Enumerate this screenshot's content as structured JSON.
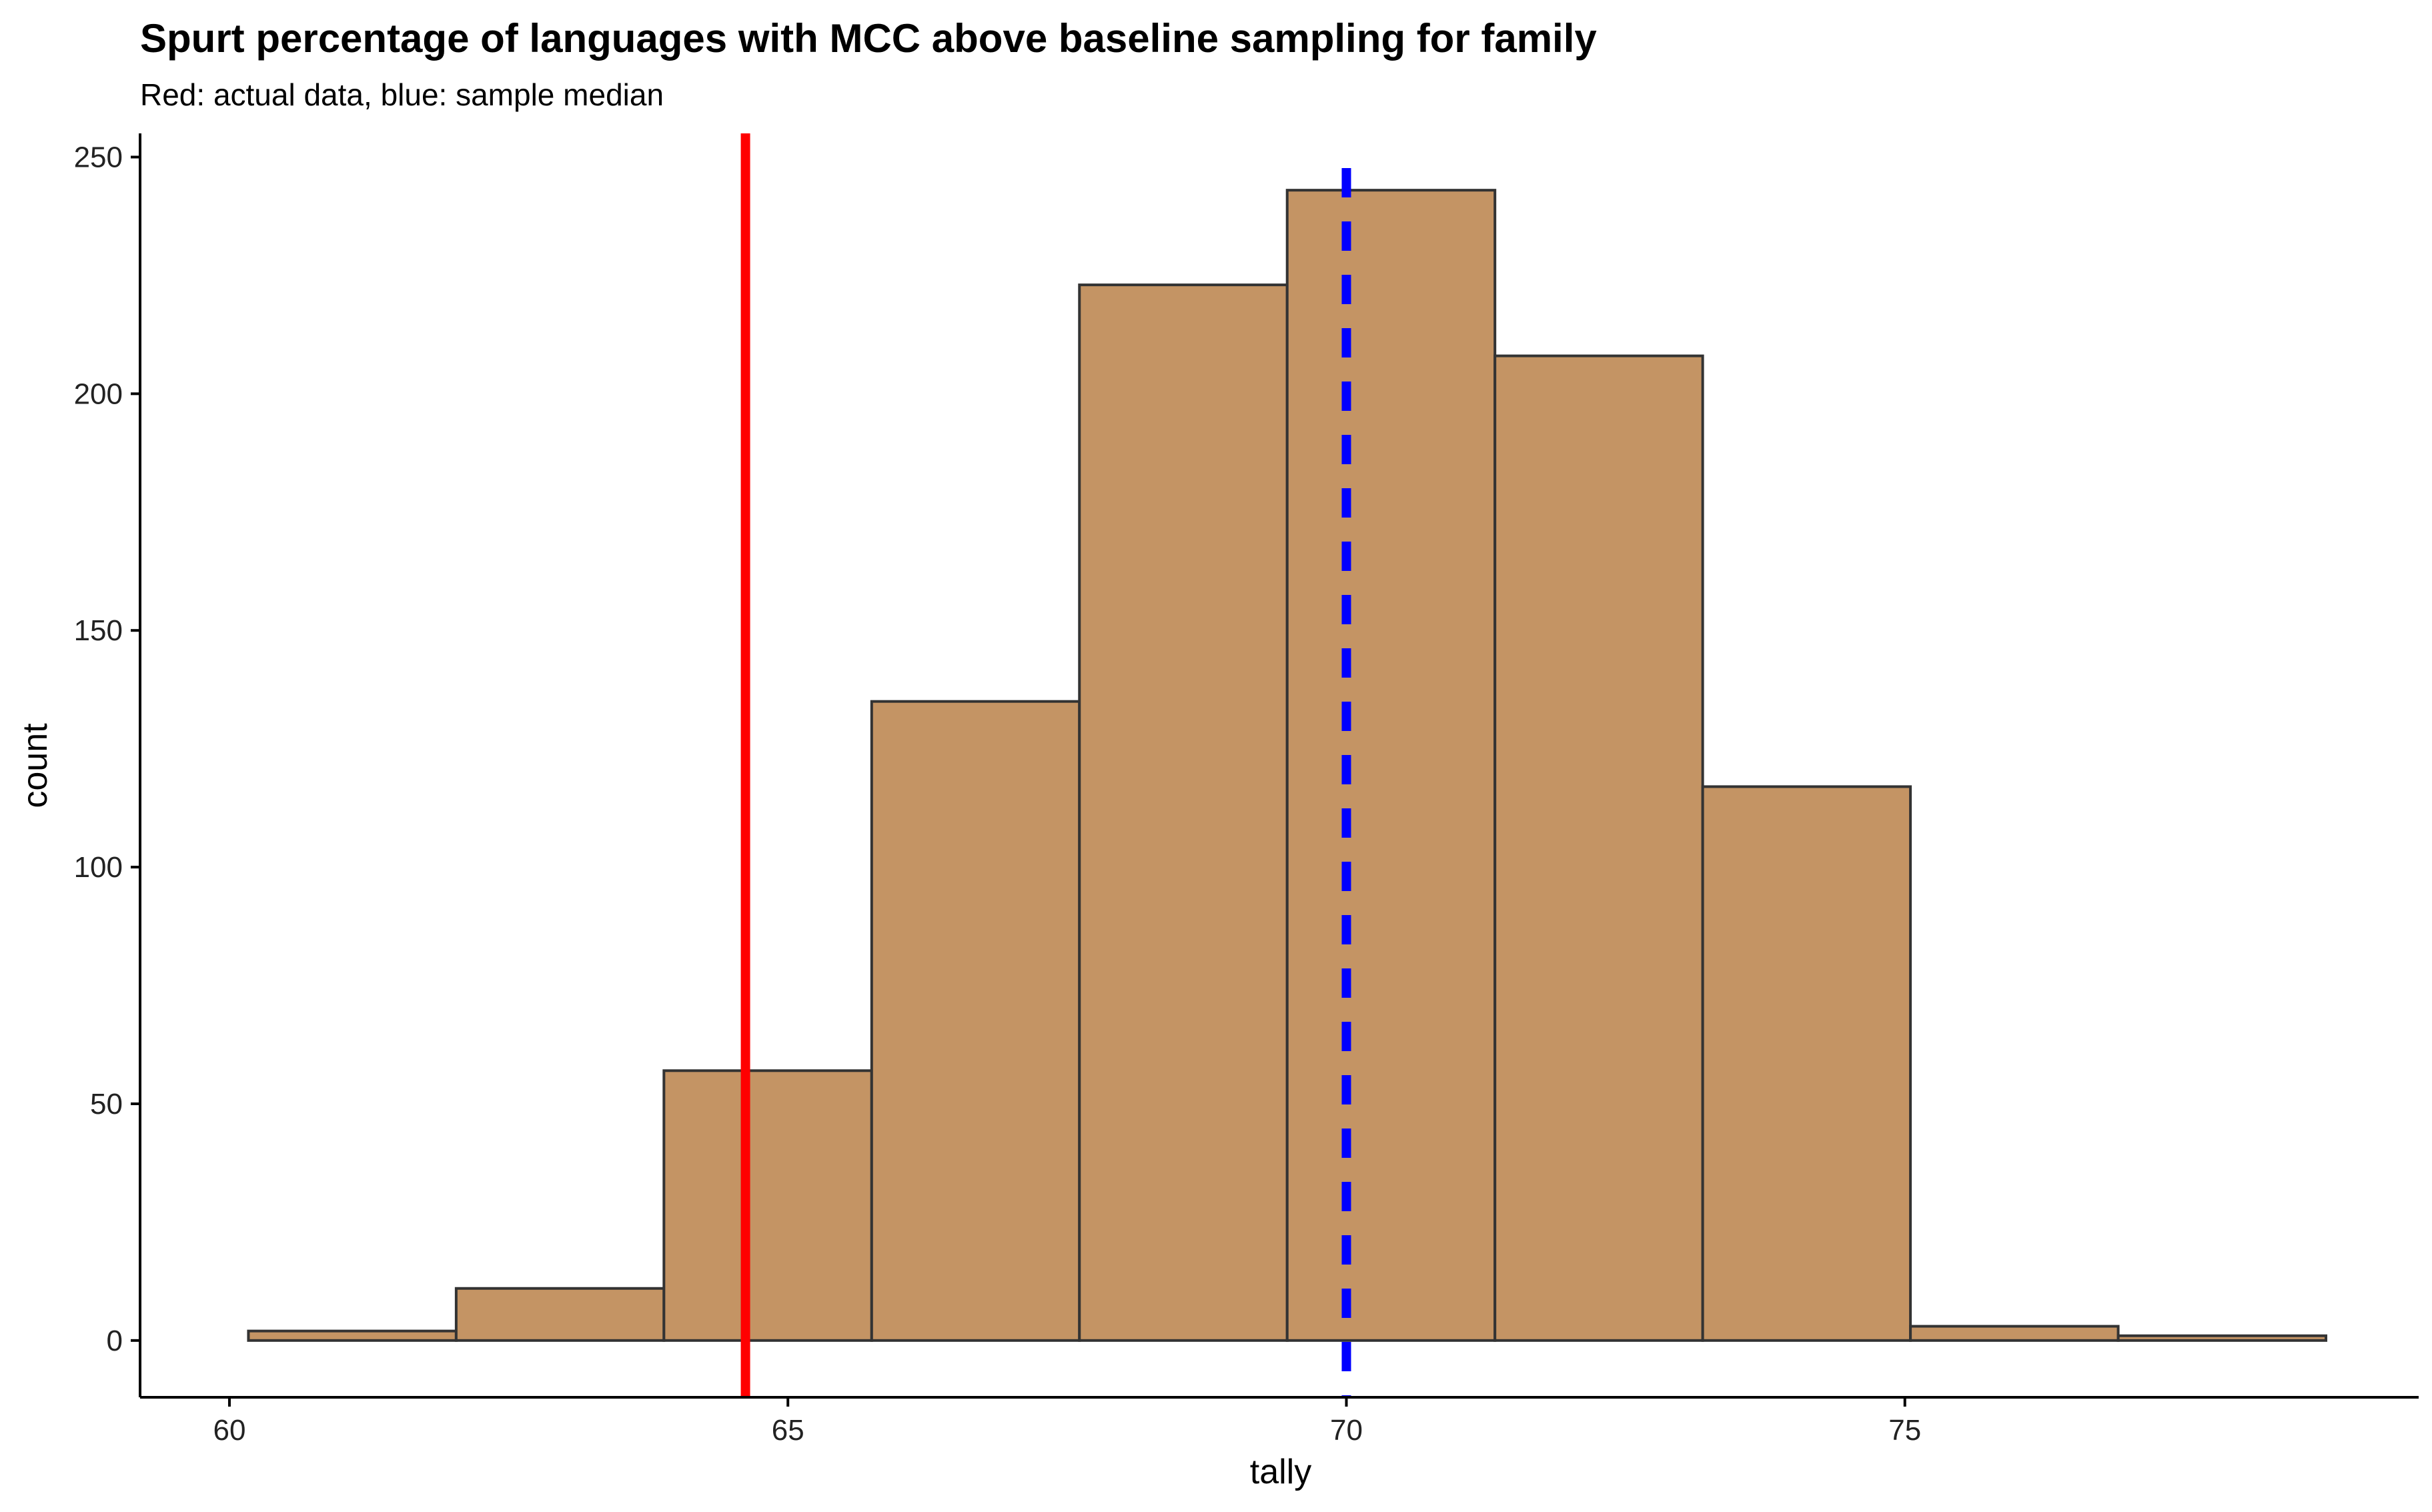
{
  "chart_data": {
    "type": "bar",
    "title": "Spurt percentage of languages with MCC above baseline sampling for family",
    "subtitle": "Red: actual data, blue: sample median",
    "xlabel": "tally",
    "ylabel": "count",
    "xlim": [
      59.2,
      79.6
    ],
    "ylim": [
      -12,
      255
    ],
    "x_ticks": [
      60,
      65,
      70,
      75
    ],
    "y_ticks": [
      0,
      50,
      100,
      150,
      200,
      250
    ],
    "bins": [
      {
        "x_start": 60.17,
        "x_end": 62.03,
        "count": 2
      },
      {
        "x_start": 62.03,
        "x_end": 63.89,
        "count": 11
      },
      {
        "x_start": 63.89,
        "x_end": 65.75,
        "count": 57
      },
      {
        "x_start": 65.75,
        "x_end": 67.61,
        "count": 135
      },
      {
        "x_start": 67.61,
        "x_end": 69.47,
        "count": 223
      },
      {
        "x_start": 69.47,
        "x_end": 71.33,
        "count": 243
      },
      {
        "x_start": 71.33,
        "x_end": 73.19,
        "count": 208
      },
      {
        "x_start": 73.19,
        "x_end": 75.05,
        "count": 117
      },
      {
        "x_start": 75.05,
        "x_end": 76.91,
        "count": 3
      },
      {
        "x_start": 76.91,
        "x_end": 78.77,
        "count": 1
      }
    ],
    "reference_lines": [
      {
        "name": "actual data",
        "x": 64.62,
        "color": "#ff0000",
        "style": "solid"
      },
      {
        "name": "sample median",
        "x": 70.0,
        "color": "#0000ff",
        "style": "dashed"
      }
    ],
    "colors": {
      "bar_fill": "#c49464",
      "bar_stroke": "#333333",
      "axis": "#000000",
      "text": "#000000"
    },
    "grid": false,
    "legend": "none"
  }
}
